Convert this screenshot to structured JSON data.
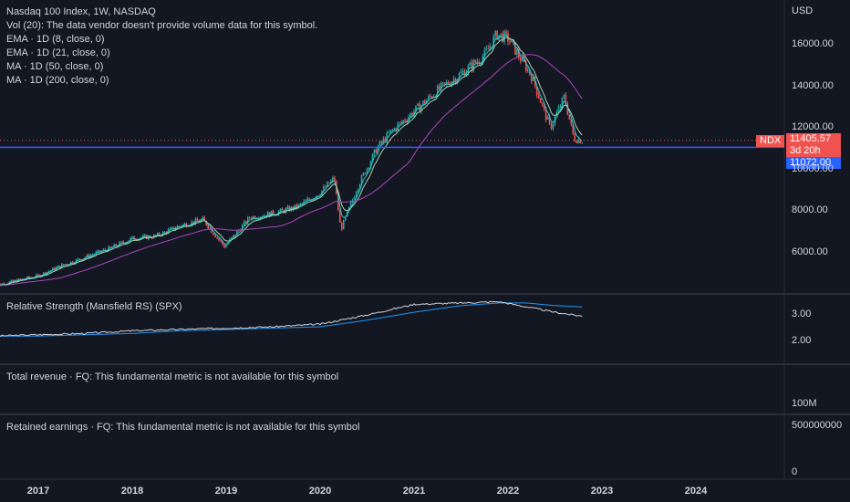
{
  "header": {
    "title": "Nasdaq 100 Index, 1W, NASDAQ",
    "currency": "USD",
    "indicators": [
      "Vol (20): The data vendor doesn't provide volume data for this symbol.",
      "EMA · 1D (8, close, 0)",
      "EMA · 1D (21, close, 0)",
      "MA · 1D (50, close, 0)",
      "MA · 1D (200, close, 0)"
    ]
  },
  "price_tags": {
    "symbol": "NDX",
    "last_price": "11405.57",
    "countdown": "3d 20h",
    "line_price": "11072.00"
  },
  "panes": {
    "rs_title": "Relative Strength (Mansfield RS) (SPX)",
    "revenue_title": "Total revenue · FQ: This fundamental metric is not available for this symbol",
    "earnings_title": "Retained earnings · FQ: This fundamental metric is not available for this symbol",
    "revenue_axis": "100M",
    "earnings_axis_top": "500000000",
    "earnings_axis_bottom": "0"
  },
  "colors": {
    "background": "#131722",
    "up": "#26a69a",
    "down": "#ef5350",
    "ema8": "#26c6da",
    "ema21": "#a5d6a7",
    "ma200": "#ab47bc",
    "hline": "#2962ff",
    "rs": "#d1d4dc",
    "rs_ma": "#2196f3"
  },
  "chart_data": {
    "type": "line",
    "title": "Nasdaq 100 Index, 1W, NASDAQ",
    "ylabel": "USD",
    "y_ticks": [
      6000,
      8000,
      10000,
      12000,
      14000,
      16000
    ],
    "y_tick_labels": [
      "6000.00",
      "8000.00",
      "10000.00",
      "12000.00",
      "14000.00",
      "16000.00"
    ],
    "x_ticks": [
      "2017",
      "2018",
      "2019",
      "2020",
      "2021",
      "2022",
      "2023",
      "2024"
    ],
    "ylim": [
      4200,
      17500
    ],
    "x": [
      2016.5,
      2016.75,
      2017.0,
      2017.25,
      2017.5,
      2017.75,
      2018.0,
      2018.25,
      2018.5,
      2018.75,
      2018.98,
      2019.25,
      2019.5,
      2019.75,
      2020.0,
      2020.15,
      2020.22,
      2020.4,
      2020.6,
      2020.75,
      2021.0,
      2021.25,
      2021.5,
      2021.75,
      2021.88,
      2022.0,
      2022.25,
      2022.45,
      2022.6,
      2022.7,
      2022.79
    ],
    "series": [
      {
        "name": "NDX",
        "values": [
          4400,
          4650,
          4900,
          5400,
          5800,
          6200,
          6700,
          6800,
          7300,
          7600,
          6300,
          7700,
          7900,
          8200,
          8900,
          9600,
          7100,
          9200,
          11000,
          11800,
          12800,
          13800,
          14600,
          15500,
          16500,
          16300,
          14500,
          12000,
          13500,
          11500,
          11405.57
        ]
      }
    ],
    "price_line": 11072.0,
    "last_price": 11405.57,
    "rs": {
      "title": "Relative Strength (Mansfield RS) (SPX)",
      "y_ticks": [
        2.0,
        3.0
      ],
      "ylim": [
        1.5,
        3.6
      ],
      "x": [
        2016.5,
        2017.0,
        2017.5,
        2018.0,
        2018.5,
        2019.0,
        2019.5,
        2020.0,
        2020.5,
        2021.0,
        2021.5,
        2021.9,
        2022.2,
        2022.5,
        2022.79
      ],
      "values": [
        2.2,
        2.25,
        2.3,
        2.4,
        2.45,
        2.5,
        2.55,
        2.65,
        3.0,
        3.4,
        3.45,
        3.5,
        3.3,
        3.1,
        2.95
      ],
      "ma_values": [
        2.2,
        2.2,
        2.25,
        2.3,
        2.4,
        2.45,
        2.5,
        2.55,
        2.8,
        3.1,
        3.35,
        3.45,
        3.45,
        3.35,
        3.3
      ]
    }
  }
}
